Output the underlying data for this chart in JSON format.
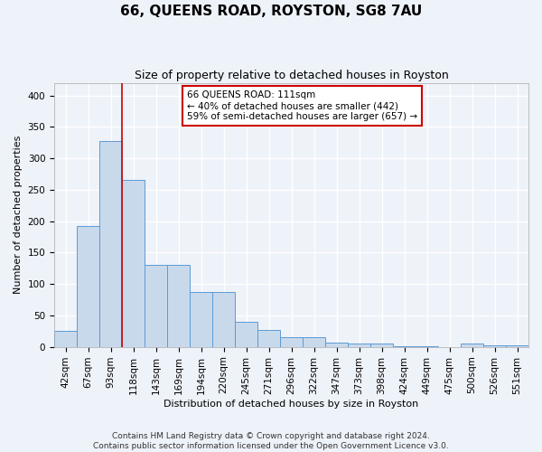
{
  "title": "66, QUEENS ROAD, ROYSTON, SG8 7AU",
  "subtitle": "Size of property relative to detached houses in Royston",
  "xlabel": "Distribution of detached houses by size in Royston",
  "ylabel": "Number of detached properties",
  "categories": [
    "42sqm",
    "67sqm",
    "93sqm",
    "118sqm",
    "143sqm",
    "169sqm",
    "194sqm",
    "220sqm",
    "245sqm",
    "271sqm",
    "296sqm",
    "322sqm",
    "347sqm",
    "373sqm",
    "398sqm",
    "424sqm",
    "449sqm",
    "475sqm",
    "500sqm",
    "526sqm",
    "551sqm"
  ],
  "values": [
    25,
    192,
    328,
    265,
    130,
    130,
    87,
    87,
    40,
    27,
    15,
    15,
    7,
    5,
    5,
    1,
    1,
    0,
    5,
    3,
    2
  ],
  "bar_color": "#c9d9ec",
  "bar_edgecolor": "#5b9bd5",
  "vline_x": 2.5,
  "vline_color": "#cc0000",
  "annotation_text": "66 QUEENS ROAD: 111sqm\n← 40% of detached houses are smaller (442)\n59% of semi-detached houses are larger (657) →",
  "annotation_box_facecolor": "#ffffff",
  "annotation_box_edgecolor": "#cc0000",
  "footer1": "Contains HM Land Registry data © Crown copyright and database right 2024.",
  "footer2": "Contains public sector information licensed under the Open Government Licence v3.0.",
  "ylim": [
    0,
    420
  ],
  "yticks": [
    0,
    50,
    100,
    150,
    200,
    250,
    300,
    350,
    400
  ],
  "background_color": "#eef2f9",
  "grid_color": "#ffffff",
  "title_fontsize": 11,
  "subtitle_fontsize": 9,
  "ylabel_fontsize": 8,
  "xlabel_fontsize": 8,
  "tick_fontsize": 7.5,
  "annotation_fontsize": 7.5,
  "footer_fontsize": 6.5
}
